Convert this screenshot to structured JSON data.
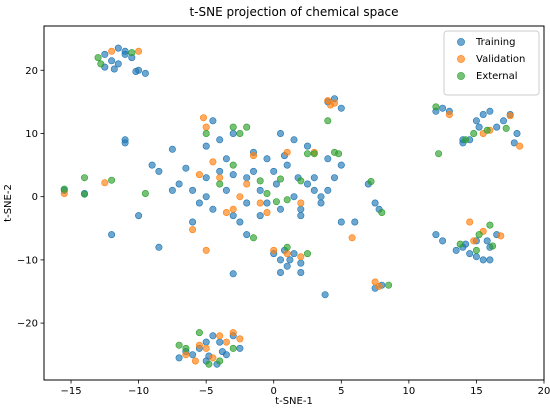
{
  "chart_data": {
    "type": "scatter",
    "title": "t-SNE projection of chemical space",
    "xlabel": "t-SNE-1",
    "ylabel": "t-SNE-2",
    "xlim": [
      -17,
      20
    ],
    "ylim": [
      -29,
      27
    ],
    "xticks": [
      -15,
      -10,
      -5,
      0,
      5,
      10,
      15,
      20
    ],
    "yticks": [
      -20,
      -10,
      0,
      10,
      20
    ],
    "grid": false,
    "legend_position": "top-right",
    "series": [
      {
        "name": "Training",
        "color": "#1f77b4",
        "points": [
          [
            -12.5,
            22.5
          ],
          [
            -11.5,
            23.5
          ],
          [
            -11,
            23
          ],
          [
            -10.5,
            22
          ],
          [
            -10,
            20
          ],
          [
            -9.5,
            19.5
          ],
          [
            -11.5,
            21
          ],
          [
            -12,
            21.5
          ],
          [
            -12.5,
            20.5
          ],
          [
            -11,
            22.5
          ],
          [
            -10.2,
            19.8
          ],
          [
            -11.8,
            20.2
          ],
          [
            -11,
            9
          ],
          [
            -11,
            8.5
          ],
          [
            -12,
            -6
          ],
          [
            -10,
            -3
          ],
          [
            -8.5,
            -8
          ],
          [
            -15.5,
            1
          ],
          [
            -14,
            0.5
          ],
          [
            -6.5,
            4.5
          ],
          [
            -6,
            1
          ],
          [
            -5.5,
            -1
          ],
          [
            -5,
            3
          ],
          [
            -5,
            8
          ],
          [
            -4.5,
            12
          ],
          [
            -4,
            9
          ],
          [
            -3.5,
            6
          ],
          [
            -3,
            -3
          ],
          [
            -2,
            3
          ],
          [
            -1.5,
            7
          ],
          [
            -1,
            1
          ],
          [
            -0.5,
            -1
          ],
          [
            0,
            4
          ],
          [
            0.5,
            -2
          ],
          [
            1,
            5
          ],
          [
            1.5,
            0
          ],
          [
            2,
            -3
          ],
          [
            2.5,
            8
          ],
          [
            3,
            3
          ],
          [
            3.5,
            -1
          ],
          [
            4,
            6
          ],
          [
            5,
            5
          ],
          [
            5,
            -4
          ],
          [
            -7,
            2
          ],
          [
            -6,
            -4
          ],
          [
            -2.5,
            -4
          ],
          [
            -1,
            -3
          ],
          [
            0.5,
            10
          ],
          [
            1.5,
            9
          ],
          [
            2.5,
            2
          ],
          [
            3.5,
            0
          ],
          [
            4.5,
            3
          ],
          [
            -3.5,
            1
          ],
          [
            -2,
            -1
          ],
          [
            -0.5,
            6
          ],
          [
            -7.5,
            1
          ],
          [
            -4,
            4
          ],
          [
            -1.5,
            4
          ],
          [
            0.2,
            2
          ],
          [
            1.8,
            3
          ],
          [
            -8.5,
            4
          ],
          [
            -9,
            5
          ],
          [
            -7.5,
            7.5
          ],
          [
            -3,
            10
          ],
          [
            -2,
            -6
          ],
          [
            0.8,
            6.5
          ],
          [
            2,
            -2
          ],
          [
            -5,
            0
          ],
          [
            -3,
            3.5
          ],
          [
            3,
            1
          ],
          [
            4,
            1
          ],
          [
            -4.5,
            -2
          ],
          [
            0,
            -9
          ],
          [
            0.5,
            -10
          ],
          [
            1,
            -11
          ],
          [
            1.5,
            -9
          ],
          [
            2,
            -10.5
          ],
          [
            0.8,
            -8.5
          ],
          [
            1.2,
            -10
          ],
          [
            5,
            14
          ],
          [
            4.5,
            15.5
          ],
          [
            4,
            15
          ],
          [
            3.8,
            -15.5
          ],
          [
            -3,
            -12.2
          ],
          [
            -6,
            -25
          ],
          [
            -5.5,
            -24
          ],
          [
            -5,
            -23
          ],
          [
            -4.5,
            -22
          ],
          [
            -4,
            -23
          ],
          [
            -3.5,
            -25
          ],
          [
            -3,
            -22
          ],
          [
            -2.5,
            -24
          ],
          [
            -5,
            -26
          ],
          [
            -6.5,
            -24.5
          ],
          [
            -7,
            -25.5
          ],
          [
            -4.2,
            -26.5
          ],
          [
            -3.8,
            -24.5
          ],
          [
            -4.8,
            -25.2
          ],
          [
            7.5,
            -14.5
          ],
          [
            8,
            -14
          ],
          [
            12,
            13.5
          ],
          [
            12.5,
            14
          ],
          [
            13,
            13.5
          ],
          [
            14,
            9
          ],
          [
            14.5,
            9
          ],
          [
            15,
            12
          ],
          [
            15.5,
            13
          ],
          [
            16,
            13.5
          ],
          [
            16.5,
            11
          ],
          [
            17,
            12
          ],
          [
            17.5,
            13
          ],
          [
            17.8,
            8.5
          ],
          [
            18,
            10
          ],
          [
            14,
            8.5
          ],
          [
            15.2,
            11
          ],
          [
            12,
            -6
          ],
          [
            12.5,
            -7
          ],
          [
            13.5,
            -8.5
          ],
          [
            14,
            -8
          ],
          [
            14.5,
            -9
          ],
          [
            15,
            -9.5
          ],
          [
            15.5,
            -10
          ],
          [
            16,
            -8
          ],
          [
            16.5,
            -6
          ],
          [
            15,
            -7
          ],
          [
            14.2,
            -7.5
          ],
          [
            15.8,
            -7
          ],
          [
            16,
            -10
          ],
          [
            7,
            2
          ],
          [
            7.5,
            -1
          ],
          [
            7.8,
            -2
          ],
          [
            6,
            -4
          ],
          [
            0.5,
            -12
          ],
          [
            2,
            -12
          ]
        ]
      },
      {
        "name": "Validation",
        "color": "#ff7f0e",
        "points": [
          [
            -12,
            23
          ],
          [
            -10,
            23
          ],
          [
            -15.5,
            0.5
          ],
          [
            -12.5,
            2.2
          ],
          [
            -6,
            -5.2
          ],
          [
            -5,
            -8.5
          ],
          [
            -5,
            11
          ],
          [
            -5.2,
            12.5
          ],
          [
            -4.5,
            5.5
          ],
          [
            -4,
            3
          ],
          [
            -3,
            -2
          ],
          [
            -2,
            2
          ],
          [
            -1,
            -1
          ],
          [
            -0.5,
            -2.5
          ],
          [
            1,
            7
          ],
          [
            2,
            -1
          ],
          [
            3,
            7
          ],
          [
            -2.5,
            0
          ],
          [
            -3.5,
            -2.5
          ],
          [
            -5.5,
            3.5
          ],
          [
            -1.5,
            6.5
          ],
          [
            0,
            -8.5
          ],
          [
            1,
            -9
          ],
          [
            2,
            -9.5
          ],
          [
            4,
            15.2
          ],
          [
            4.5,
            14.8
          ],
          [
            4.2,
            14.5
          ],
          [
            5.8,
            -6.5
          ],
          [
            -5.5,
            -23.5
          ],
          [
            -5,
            -24
          ],
          [
            -4,
            -22
          ],
          [
            -3.5,
            -23
          ],
          [
            -3,
            -21.5
          ],
          [
            -2.5,
            -22.5
          ],
          [
            -4.5,
            -25.5
          ],
          [
            -5.8,
            -26
          ],
          [
            -6.5,
            -25
          ],
          [
            7.5,
            -13.5
          ],
          [
            7.8,
            -14.2
          ],
          [
            13,
            13
          ],
          [
            16,
            10.5
          ],
          [
            17.5,
            12.8
          ],
          [
            18.2,
            8
          ],
          [
            15.5,
            10
          ],
          [
            14.5,
            -4
          ],
          [
            15.5,
            -5.5
          ],
          [
            16.8,
            -6.2
          ],
          [
            14.8,
            -7
          ]
        ]
      },
      {
        "name": "External",
        "color": "#2ca02c",
        "points": [
          [
            -13,
            22
          ],
          [
            -12.8,
            21
          ],
          [
            -10.5,
            22.8
          ],
          [
            -15.5,
            1.2
          ],
          [
            -14,
            3
          ],
          [
            -14,
            0.4
          ],
          [
            -12,
            2.6
          ],
          [
            -9.5,
            0.5
          ],
          [
            -5,
            10
          ],
          [
            -2.5,
            10
          ],
          [
            -2,
            11
          ],
          [
            -3,
            5
          ],
          [
            -1,
            2.5
          ],
          [
            0.5,
            2.8
          ],
          [
            1,
            -0.5
          ],
          [
            3,
            6.8
          ],
          [
            4,
            12
          ],
          [
            4.5,
            7
          ],
          [
            2,
            2.5
          ],
          [
            -3,
            11
          ],
          [
            -1.5,
            -6.5
          ],
          [
            -0.5,
            0.5
          ],
          [
            -4,
            2
          ],
          [
            0.2,
            -0.8
          ],
          [
            4.8,
            6.8
          ],
          [
            2.5,
            6.8
          ],
          [
            1,
            -8
          ],
          [
            2.5,
            -9
          ],
          [
            -6.5,
            -24
          ],
          [
            -5.5,
            -21.5
          ],
          [
            -4,
            -26
          ],
          [
            -3,
            -24
          ],
          [
            -4.8,
            -26.5
          ],
          [
            -7,
            -23.5
          ],
          [
            8.5,
            -14
          ],
          [
            12,
            14.2
          ],
          [
            12.2,
            6.8
          ],
          [
            14.2,
            9
          ],
          [
            14.8,
            10
          ],
          [
            15.8,
            10.5
          ],
          [
            17.2,
            10.8
          ],
          [
            13.8,
            -7.5
          ],
          [
            15,
            -8.5
          ],
          [
            16,
            -4.5
          ],
          [
            16.2,
            -7.8
          ],
          [
            15.2,
            -6
          ],
          [
            8,
            -2.5
          ],
          [
            7.2,
            2.4
          ]
        ]
      }
    ]
  }
}
